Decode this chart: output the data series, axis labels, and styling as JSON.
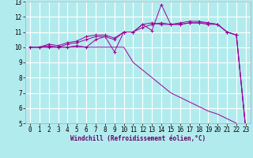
{
  "xlabel": "Windchill (Refroidissement éolien,°C)",
  "background_color": "#b2ebee",
  "grid_color": "#ffffff",
  "line_color": "#990099",
  "xlim": [
    -0.5,
    23.5
  ],
  "ylim": [
    5,
    13
  ],
  "yticks": [
    5,
    6,
    7,
    8,
    9,
    10,
    11,
    12,
    13
  ],
  "xticks": [
    0,
    1,
    2,
    3,
    4,
    5,
    6,
    7,
    8,
    9,
    10,
    11,
    12,
    13,
    14,
    15,
    16,
    17,
    18,
    19,
    20,
    21,
    22,
    23
  ],
  "hours": [
    0,
    1,
    2,
    3,
    4,
    5,
    6,
    7,
    8,
    9,
    10,
    11,
    12,
    13,
    14,
    15,
    16,
    17,
    18,
    19,
    20,
    21,
    22,
    23
  ],
  "line1": [
    10.0,
    10.0,
    10.2,
    10.1,
    10.3,
    10.4,
    10.7,
    10.8,
    10.8,
    10.6,
    11.0,
    11.0,
    11.5,
    11.1,
    12.8,
    11.5,
    11.6,
    11.7,
    11.7,
    11.6,
    11.5,
    11.0,
    10.8,
    4.6
  ],
  "line2": [
    10.0,
    10.0,
    10.1,
    10.0,
    10.2,
    10.3,
    10.5,
    10.7,
    10.7,
    10.5,
    11.0,
    11.0,
    11.3,
    11.5,
    11.6,
    11.5,
    11.5,
    11.6,
    11.6,
    11.6,
    11.5,
    11.0,
    10.8,
    4.6
  ],
  "line3": [
    10.0,
    10.0,
    10.0,
    10.0,
    10.0,
    10.1,
    10.0,
    10.5,
    10.7,
    9.7,
    11.0,
    11.0,
    11.5,
    11.6,
    11.5,
    11.5,
    11.5,
    11.6,
    11.6,
    11.5,
    11.5,
    11.0,
    10.8,
    4.6
  ],
  "line4": [
    10.0,
    10.0,
    10.0,
    10.0,
    10.0,
    10.0,
    10.0,
    10.0,
    10.0,
    10.0,
    10.0,
    9.0,
    8.5,
    8.0,
    7.5,
    7.0,
    6.7,
    6.4,
    6.1,
    5.8,
    5.6,
    5.3,
    5.0,
    4.6
  ],
  "tick_fontsize": 5.5,
  "xlabel_fontsize": 5.5,
  "xlabel_color": "#660066"
}
